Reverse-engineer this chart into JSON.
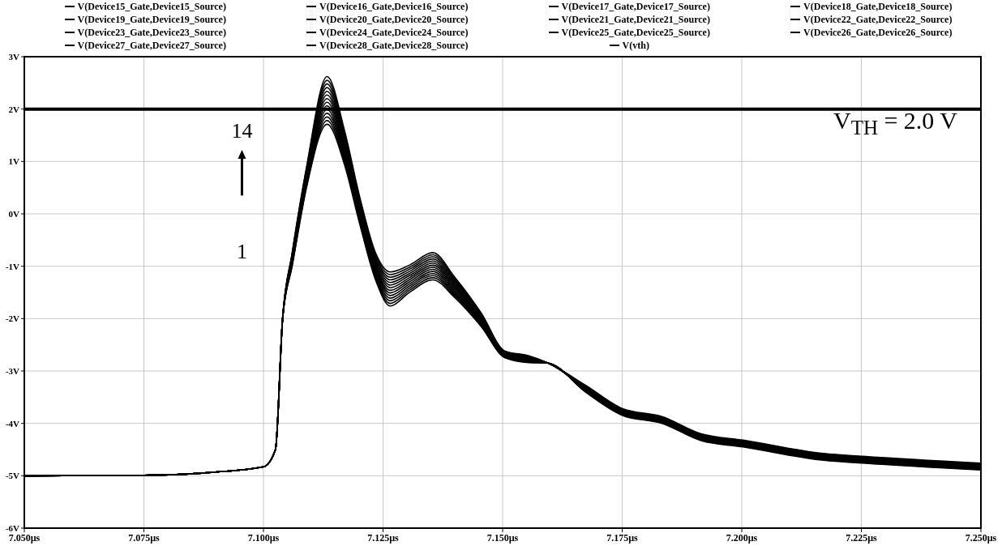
{
  "chart_data": {
    "type": "line",
    "legend": "top",
    "grid": true,
    "marker": "none",
    "line_style": "solid",
    "x": [
      7.05,
      7.075,
      7.09,
      7.1,
      7.1025,
      7.104,
      7.106,
      7.109,
      7.1133,
      7.117,
      7.12,
      7.1235,
      7.1265,
      7.1305,
      7.1354,
      7.14,
      7.1455,
      7.1505,
      7.1555,
      7.1595,
      7.1673,
      7.1751,
      7.1833,
      7.1915,
      7.2003,
      7.2167,
      7.2254,
      7.25
    ],
    "xlim": [
      7.05,
      7.25
    ],
    "xticks": [
      {
        "value": 7.05,
        "label": "7.050µs"
      },
      {
        "value": 7.075,
        "label": "7.075µs"
      },
      {
        "value": 7.1,
        "label": "7.100µs"
      },
      {
        "value": 7.125,
        "label": "7.125µs"
      },
      {
        "value": 7.15,
        "label": "7.150µs"
      },
      {
        "value": 7.175,
        "label": "7.175µs"
      },
      {
        "value": 7.2,
        "label": "7.200µs"
      },
      {
        "value": 7.225,
        "label": "7.225µs"
      },
      {
        "value": 7.25,
        "label": "7.250µs"
      }
    ],
    "ylim": [
      -6,
      3
    ],
    "yticks": [
      {
        "value": -6,
        "label": "-6V"
      },
      {
        "value": -5,
        "label": "-5V"
      },
      {
        "value": -4,
        "label": "-4V"
      },
      {
        "value": -3,
        "label": "-3V"
      },
      {
        "value": -2,
        "label": "-2V"
      },
      {
        "value": -1,
        "label": "-1V"
      },
      {
        "value": 0,
        "label": "0V"
      },
      {
        "value": 1,
        "label": "1V"
      },
      {
        "value": 2,
        "label": "2V"
      },
      {
        "value": 3,
        "label": "3V"
      }
    ],
    "annotations": [
      "14",
      "1",
      "V$_{TH}$ = 2.0 V"
    ],
    "series": [
      {
        "name": "V(Device15_Gate,Device15_Source)",
        "color": "#000000",
        "values": [
          -5.0,
          -4.99,
          -4.93,
          -4.83,
          -4.5,
          -2.0,
          -1.0,
          0.5,
          1.71,
          0.92,
          -0.15,
          -1.28,
          -1.76,
          -1.5,
          -1.26,
          -1.6,
          -2.15,
          -2.75,
          -2.84,
          -2.85,
          -3.4,
          -3.85,
          -4.0,
          -4.33,
          -4.45,
          -4.7,
          -4.76,
          -4.89
        ]
      },
      {
        "name": "V(Device16_Gate,Device16_Source)",
        "color": "#000000",
        "values": [
          -5.0,
          -4.99,
          -4.93,
          -4.83,
          -4.5,
          -2.0,
          -0.98,
          0.53,
          1.78,
          0.97,
          -0.11,
          -1.24,
          -1.71,
          -1.46,
          -1.22,
          -1.57,
          -2.13,
          -2.74,
          -2.83,
          -2.85,
          -3.39,
          -3.84,
          -3.99,
          -4.32,
          -4.44,
          -4.69,
          -4.75,
          -4.88
        ]
      },
      {
        "name": "V(Device17_Gate,Device17_Source)",
        "color": "#000000",
        "values": [
          -5.0,
          -4.99,
          -4.93,
          -4.83,
          -4.5,
          -2.0,
          -0.96,
          0.56,
          1.85,
          1.02,
          -0.07,
          -1.2,
          -1.66,
          -1.42,
          -1.18,
          -1.54,
          -2.11,
          -2.73,
          -2.82,
          -2.85,
          -3.38,
          -3.83,
          -3.98,
          -4.31,
          -4.43,
          -4.68,
          -4.74,
          -4.87
        ]
      },
      {
        "name": "V(Device18_Gate,Device18_Source)",
        "color": "#000000",
        "values": [
          -5.0,
          -4.99,
          -4.93,
          -4.83,
          -4.5,
          -2.0,
          -0.94,
          0.59,
          1.92,
          1.07,
          -0.03,
          -1.16,
          -1.61,
          -1.38,
          -1.14,
          -1.51,
          -2.09,
          -2.72,
          -2.81,
          -2.85,
          -3.37,
          -3.82,
          -3.97,
          -4.3,
          -4.42,
          -4.67,
          -4.73,
          -4.86
        ]
      },
      {
        "name": "V(Device19_Gate,Device19_Source)",
        "color": "#000000",
        "values": [
          -5.0,
          -4.99,
          -4.93,
          -4.83,
          -4.5,
          -2.0,
          -0.92,
          0.62,
          1.99,
          1.12,
          0.01,
          -1.12,
          -1.56,
          -1.34,
          -1.1,
          -1.48,
          -2.07,
          -2.71,
          -2.8,
          -2.85,
          -3.36,
          -3.81,
          -3.96,
          -4.29,
          -4.41,
          -4.66,
          -4.72,
          -4.85
        ]
      },
      {
        "name": "V(Device20_Gate,Device20_Source)",
        "color": "#000000",
        "values": [
          -5.0,
          -4.99,
          -4.93,
          -4.83,
          -4.5,
          -2.0,
          -0.9,
          0.65,
          2.06,
          1.17,
          0.05,
          -1.08,
          -1.51,
          -1.3,
          -1.06,
          -1.45,
          -2.05,
          -2.7,
          -2.79,
          -2.85,
          -3.35,
          -3.8,
          -3.95,
          -4.28,
          -4.4,
          -4.65,
          -4.71,
          -4.84
        ]
      },
      {
        "name": "V(Device21_Gate,Device21_Source)",
        "color": "#000000",
        "values": [
          -5.0,
          -4.99,
          -4.93,
          -4.83,
          -4.5,
          -2.0,
          -0.88,
          0.68,
          2.13,
          1.22,
          0.09,
          -1.04,
          -1.46,
          -1.26,
          -1.02,
          -1.42,
          -2.03,
          -2.69,
          -2.78,
          -2.85,
          -3.34,
          -3.79,
          -3.94,
          -4.27,
          -4.39,
          -4.64,
          -4.7,
          -4.83
        ]
      },
      {
        "name": "V(Device22_Gate,Device22_Source)",
        "color": "#000000",
        "values": [
          -5.0,
          -4.99,
          -4.93,
          -4.83,
          -4.5,
          -2.0,
          -0.86,
          0.71,
          2.2,
          1.27,
          0.13,
          -1.0,
          -1.41,
          -1.22,
          -0.98,
          -1.39,
          -2.01,
          -2.68,
          -2.77,
          -2.85,
          -3.33,
          -3.78,
          -3.93,
          -4.26,
          -4.38,
          -4.63,
          -4.69,
          -4.82
        ]
      },
      {
        "name": "V(Device23_Gate,Device23_Source)",
        "color": "#000000",
        "values": [
          -5.0,
          -4.99,
          -4.93,
          -4.83,
          -4.5,
          -2.0,
          -0.84,
          0.74,
          2.27,
          1.32,
          0.17,
          -0.96,
          -1.36,
          -1.18,
          -0.94,
          -1.36,
          -1.99,
          -2.67,
          -2.76,
          -2.85,
          -3.32,
          -3.77,
          -3.92,
          -4.25,
          -4.37,
          -4.62,
          -4.68,
          -4.81
        ]
      },
      {
        "name": "V(Device24_Gate,Device24_Source)",
        "color": "#000000",
        "values": [
          -5.0,
          -4.99,
          -4.93,
          -4.83,
          -4.5,
          -2.0,
          -0.82,
          0.77,
          2.34,
          1.37,
          0.21,
          -0.92,
          -1.31,
          -1.14,
          -0.9,
          -1.33,
          -1.97,
          -2.66,
          -2.75,
          -2.85,
          -3.31,
          -3.76,
          -3.91,
          -4.24,
          -4.36,
          -4.61,
          -4.67,
          -4.8
        ]
      },
      {
        "name": "V(Device25_Gate,Device25_Source)",
        "color": "#000000",
        "values": [
          -5.0,
          -4.99,
          -4.93,
          -4.83,
          -4.5,
          -2.0,
          -0.8,
          0.8,
          2.41,
          1.42,
          0.25,
          -0.88,
          -1.26,
          -1.1,
          -0.86,
          -1.3,
          -1.95,
          -2.65,
          -2.74,
          -2.85,
          -3.3,
          -3.75,
          -3.9,
          -4.23,
          -4.35,
          -4.6,
          -4.66,
          -4.79
        ]
      },
      {
        "name": "V(Device26_Gate,Device26_Source)",
        "color": "#000000",
        "values": [
          -5.0,
          -4.99,
          -4.93,
          -4.83,
          -4.5,
          -2.0,
          -0.78,
          0.83,
          2.48,
          1.47,
          0.29,
          -0.84,
          -1.21,
          -1.06,
          -0.82,
          -1.27,
          -1.93,
          -2.64,
          -2.73,
          -2.85,
          -3.29,
          -3.74,
          -3.89,
          -4.22,
          -4.34,
          -4.59,
          -4.65,
          -4.78
        ]
      },
      {
        "name": "V(Device27_Gate,Device27_Source)",
        "color": "#000000",
        "values": [
          -5.0,
          -4.99,
          -4.93,
          -4.83,
          -4.5,
          -2.0,
          -0.76,
          0.86,
          2.55,
          1.52,
          0.33,
          -0.8,
          -1.16,
          -1.02,
          -0.78,
          -1.24,
          -1.91,
          -2.63,
          -2.72,
          -2.85,
          -3.28,
          -3.73,
          -3.88,
          -4.21,
          -4.33,
          -4.58,
          -4.64,
          -4.77
        ]
      },
      {
        "name": "V(Device28_Gate,Device28_Source)",
        "color": "#000000",
        "values": [
          -5.0,
          -4.99,
          -4.93,
          -4.83,
          -4.5,
          -2.0,
          -0.74,
          0.89,
          2.62,
          1.57,
          0.37,
          -0.76,
          -1.11,
          -0.98,
          -0.74,
          -1.21,
          -1.89,
          -2.62,
          -2.71,
          -2.85,
          -3.27,
          -3.72,
          -3.87,
          -4.2,
          -4.32,
          -4.57,
          -4.63,
          -4.76
        ]
      },
      {
        "name": "V(vth)",
        "color": "#000000",
        "x": [
          7.05,
          7.25
        ],
        "values": [
          2.0,
          2.0
        ],
        "line_style": "solid"
      }
    ]
  }
}
